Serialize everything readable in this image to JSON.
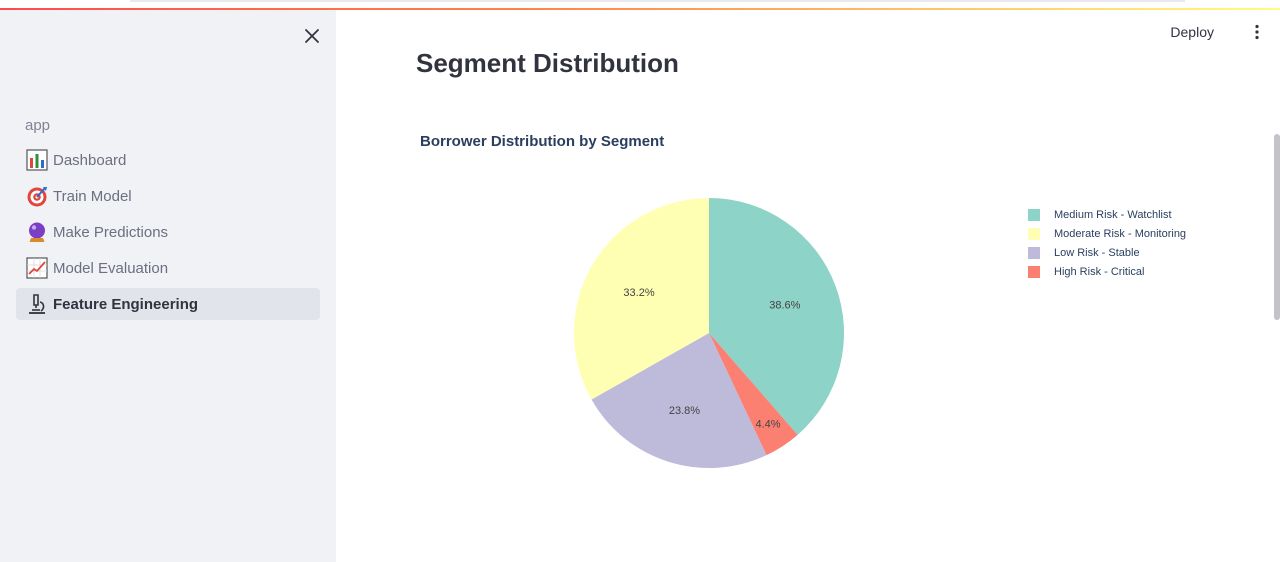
{
  "sidebar": {
    "section_label": "app",
    "items": [
      {
        "label": "Dashboard",
        "icon": "bar-chart-icon",
        "active": false
      },
      {
        "label": "Train Model",
        "icon": "target-icon",
        "active": false
      },
      {
        "label": "Make Predictions",
        "icon": "crystal-ball-icon",
        "active": false
      },
      {
        "label": "Model Evaluation",
        "icon": "chart-increasing-icon",
        "active": false
      },
      {
        "label": "Feature Engineering",
        "icon": "microscope-icon",
        "active": true
      }
    ]
  },
  "header": {
    "deploy_label": "Deploy"
  },
  "main": {
    "page_title": "Segment Distribution"
  },
  "chart_data": {
    "type": "pie",
    "title": "Borrower Distribution by Segment",
    "slices": [
      {
        "label": "Medium Risk - Watchlist",
        "percent": 38.6,
        "display": "38.6%",
        "color": "#8dd3c7"
      },
      {
        "label": "High Risk - Critical",
        "percent": 4.4,
        "display": "4.4%",
        "color": "#fb8072"
      },
      {
        "label": "Low Risk - Stable",
        "percent": 23.8,
        "display": "23.8%",
        "color": "#bebada"
      },
      {
        "label": "Moderate Risk - Monitoring",
        "percent": 33.2,
        "display": "33.2%",
        "color": "#ffffb3"
      }
    ],
    "legend": [
      {
        "label": "Medium Risk - Watchlist",
        "color": "#8dd3c7"
      },
      {
        "label": "Moderate Risk - Monitoring",
        "color": "#ffffb3"
      },
      {
        "label": "Low Risk - Stable",
        "color": "#bebada"
      },
      {
        "label": "High Risk - Critical",
        "color": "#fb8072"
      }
    ],
    "legend_position": "right",
    "direction": "clockwise",
    "start": "top"
  }
}
